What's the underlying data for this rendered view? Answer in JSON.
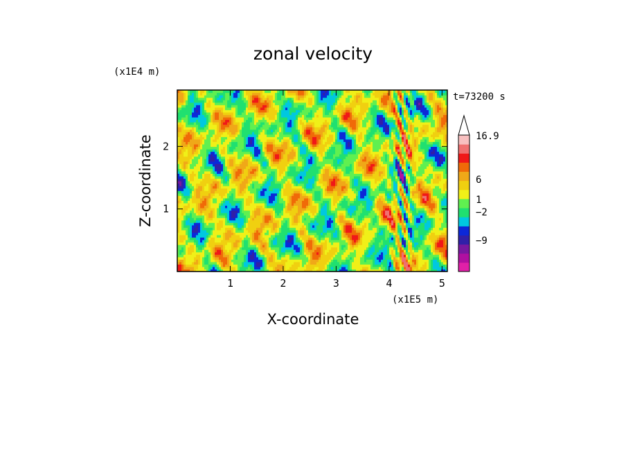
{
  "chart_data": {
    "type": "heatmap",
    "title": "zonal velocity",
    "xlabel": "X-coordinate",
    "ylabel": "Z-coordinate",
    "x_scale_label": "(x1E5 m)",
    "y_scale_label": "(x1E4 m)",
    "time_label": "t=73200 s",
    "xlim": [
      0.0,
      5.1
    ],
    "ylim": [
      0.0,
      2.9
    ],
    "x_ticks": [
      1,
      2,
      3,
      4,
      5
    ],
    "y_ticks": [
      1,
      2
    ],
    "colorbar": {
      "colors": [
        "#e020a8",
        "#b010a0",
        "#7818a0",
        "#3020a8",
        "#0c28d8",
        "#00c8e0",
        "#20e070",
        "#60f050",
        "#f0f018",
        "#f0d010",
        "#f0a818",
        "#f06a08",
        "#f01818",
        "#f07070",
        "#f8c0c0"
      ],
      "tick_labels": [
        "16.9",
        "6",
        "1",
        "-2",
        "-9"
      ],
      "top_arrow": true
    }
  }
}
